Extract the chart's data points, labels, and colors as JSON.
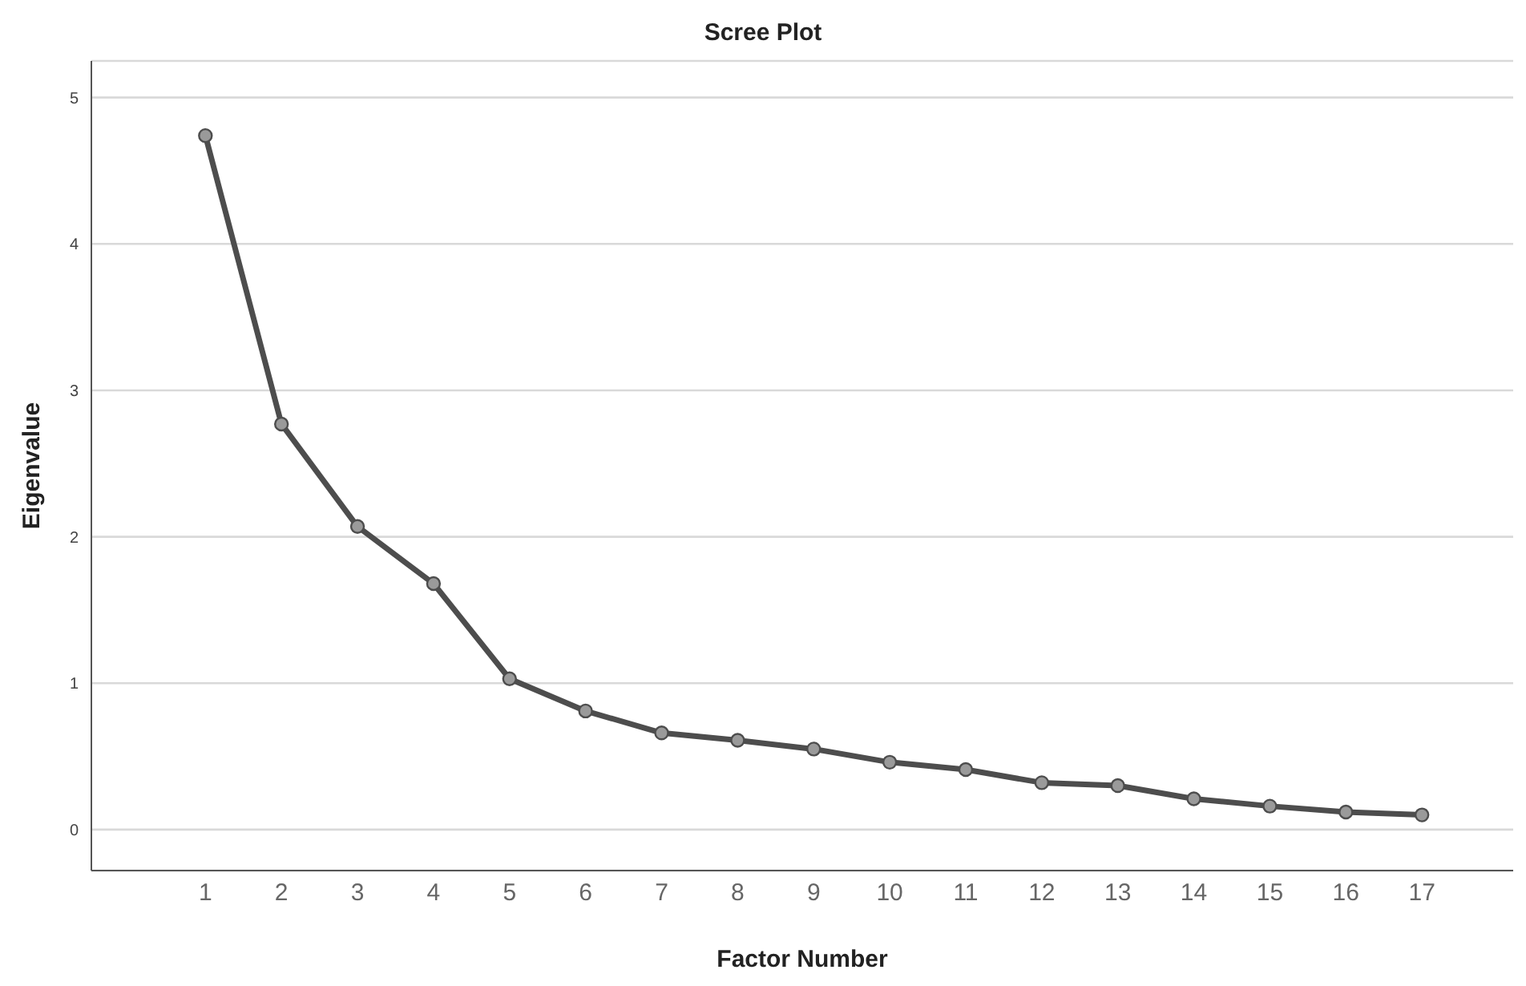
{
  "chart_data": {
    "type": "line",
    "title": "Scree Plot",
    "xlabel": "Factor Number",
    "ylabel": "Eigenvalue",
    "x": [
      1,
      2,
      3,
      4,
      5,
      6,
      7,
      8,
      9,
      10,
      11,
      12,
      13,
      14,
      15,
      16,
      17
    ],
    "series": [
      {
        "color": "#4d4d4d",
        "values": [
          4.74,
          2.77,
          2.07,
          1.68,
          1.03,
          0.81,
          0.66,
          0.61,
          0.55,
          0.46,
          0.41,
          0.32,
          0.3,
          0.21,
          0.16,
          0.12,
          0.1
        ]
      }
    ],
    "xlim": [
      -0.5,
      18.2
    ],
    "xticks": [
      1,
      2,
      3,
      4,
      5,
      6,
      7,
      8,
      9,
      10,
      11,
      12,
      13,
      14,
      15,
      16,
      17
    ],
    "ylim": [
      -0.28,
      5.25
    ],
    "yticks": [
      0,
      1,
      2,
      3,
      4,
      5
    ],
    "grid": "y",
    "marker": "circle",
    "line_style": "solid",
    "legend": false
  }
}
